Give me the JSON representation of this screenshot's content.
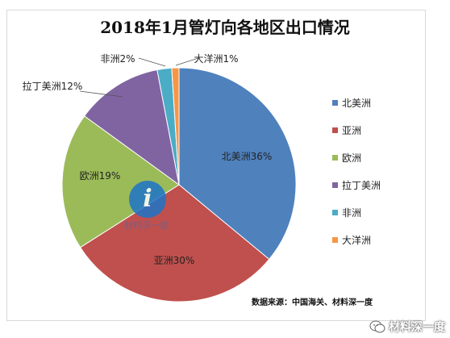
{
  "chart_data": {
    "type": "pie",
    "title": "2018年1月管灯向各地区出口情况",
    "slices": [
      {
        "name": "北美洲",
        "value": 36,
        "label": "北美洲36%",
        "color": "#4f81bd"
      },
      {
        "name": "亚洲",
        "value": 30,
        "label": "亚洲30%",
        "color": "#c0504d"
      },
      {
        "name": "欧洲",
        "value": 19,
        "label": "欧洲19%",
        "color": "#9bbb59"
      },
      {
        "name": "拉丁美洲",
        "value": 12,
        "label": "拉丁美洲12%",
        "color": "#8064a2"
      },
      {
        "name": "非洲",
        "value": 2,
        "label": "非洲2%",
        "color": "#4bacc6"
      },
      {
        "name": "大洋洲",
        "value": 1,
        "label": "大洋洲1%",
        "color": "#f79646"
      }
    ],
    "legend_position": "right"
  },
  "source_note": "数据来源：中国海关、材料深一度",
  "watermark": {
    "logo_letter": "i",
    "text": "材料深一度",
    "icon": "i-logo-icon"
  },
  "wechat_badge": {
    "icon": "wechat-icon",
    "text": "材料深一度"
  }
}
